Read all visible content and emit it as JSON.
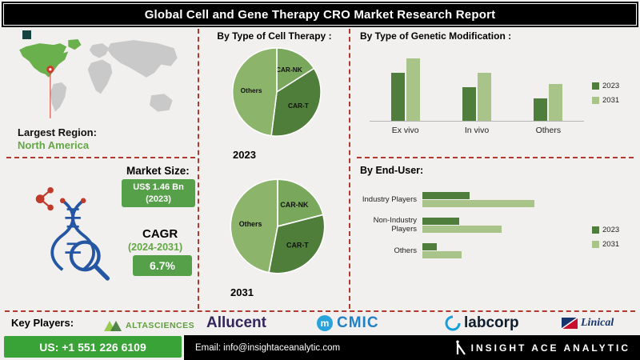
{
  "header": {
    "title": "Global Cell and Gene Therapy CRO Market Research Report"
  },
  "region": {
    "label": "Largest Region:",
    "value": "North America"
  },
  "market": {
    "size_label": "Market Size:",
    "size_value": "US$ 1.46 Bn",
    "size_year": "(2023)",
    "cagr_label": "CAGR",
    "cagr_period": "(2024-2031)",
    "cagr_value": "6.7%"
  },
  "sections": {
    "cell_therapy_title": "By Type of Cell Therapy :",
    "genetic_modification_title": "By Type of Genetic Modification :",
    "end_user_title": "By End-User:"
  },
  "chart_data": [
    {
      "type": "pie",
      "name": "cell-therapy-2023",
      "year_label": "2023",
      "labels": [
        "CAR-NK",
        "CAR-T",
        "Others"
      ],
      "values": [
        16,
        36,
        48
      ]
    },
    {
      "type": "pie",
      "name": "cell-therapy-2031",
      "year_label": "2031",
      "labels": [
        "CAR-NK",
        "CAR-T",
        "Others"
      ],
      "values": [
        21,
        32,
        47
      ]
    },
    {
      "type": "bar",
      "name": "genetic-modification",
      "orientation": "vertical",
      "title": "By Type of Genetic Modification :",
      "categories": [
        "Ex vivo",
        "In vivo",
        "Others"
      ],
      "series": [
        {
          "name": "2023",
          "values": [
            77,
            54,
            36
          ]
        },
        {
          "name": "2031",
          "values": [
            100,
            77,
            59
          ]
        }
      ],
      "value_note": "relative heights, axis unlabeled",
      "legend_position": "right"
    },
    {
      "type": "bar",
      "name": "end-user",
      "orientation": "horizontal",
      "title": "By End-User:",
      "categories": [
        "Industry Players",
        "Non-Industry Players",
        "Others"
      ],
      "series": [
        {
          "name": "2023",
          "values": [
            42,
            33,
            13
          ]
        },
        {
          "name": "2031",
          "values": [
            100,
            71,
            35
          ]
        }
      ],
      "value_note": "relative widths, axis unlabeled",
      "legend_position": "right"
    }
  ],
  "key_players": {
    "label": "Key Players:",
    "players": [
      {
        "name": "ALTASCIENCES"
      },
      {
        "name": "Allucent"
      },
      {
        "name": "CMIC",
        "icon_letter": "m"
      },
      {
        "name": "labcorp"
      },
      {
        "name": "Linical"
      }
    ]
  },
  "footer": {
    "phone": "US: +1 551 226 6109",
    "email": "Email: info@insightaceanalytic.com",
    "brand": "INSIGHT ACE ANALYTIC"
  },
  "colors": {
    "dark_green": "#4e7d3c",
    "light_green": "#a9c488",
    "box_green": "#55a049",
    "footer_green": "#3aa338",
    "region_green": "#62a744",
    "divider_red": "#b03a2e",
    "map_land": "#c9c9c9",
    "map_highlight": "#6ab04c",
    "pie": {
      "CAR-NK": "#79a85c",
      "CAR-T": "#4f7d3a",
      "Others": "#8cb56b"
    }
  }
}
